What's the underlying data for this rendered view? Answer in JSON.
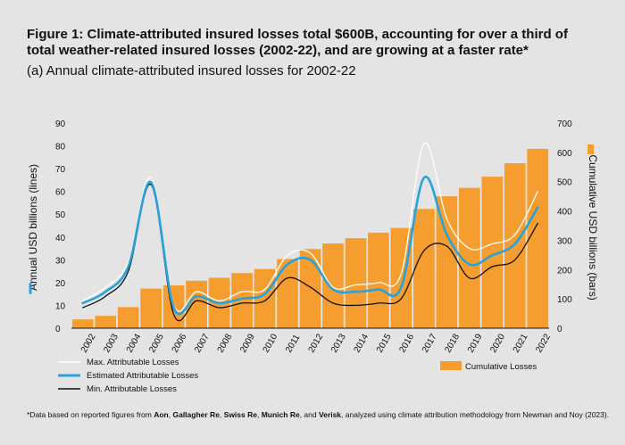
{
  "header": {
    "title": "Figure 1: Climate-attributed insured losses total $600B, accounting for over a third of total weather-related insured losses (2002-22), and are growing at a faster rate*",
    "subtitle": "(a) Annual climate-attributed insured losses for 2002-22"
  },
  "footnote": {
    "prefix": "*Data based on reported figures from ",
    "s1": "Aon",
    "sep1": ", ",
    "s2": "Gallagher Re",
    "sep2": ", ",
    "s3": "Swiss Re",
    "sep3": ", ",
    "s4": "Munich Re",
    "sep4": ", and ",
    "s5": "Verisk",
    "suffix": ", analyzed using climate attribution methodology from Newman and Noy (2023)."
  },
  "colors": {
    "bars": "#f59d2f",
    "estimated": "#27a3dc",
    "max": "#ffffff",
    "min": "#111111",
    "background": "#e4e4e4"
  },
  "chart_data": {
    "type": "bar+line",
    "categories": [
      "2002",
      "2003",
      "2004",
      "2005",
      "2006",
      "2007",
      "2008",
      "2009",
      "2010",
      "2011",
      "2012",
      "2013",
      "2014",
      "2015",
      "2016",
      "2017",
      "2018",
      "2019",
      "2020",
      "2021",
      "2022"
    ],
    "left_axis": {
      "label": "Annual USD billions (lines)",
      "ylim": [
        0,
        90
      ],
      "ticks": [
        0,
        10,
        20,
        30,
        40,
        50,
        60,
        70,
        80,
        90
      ]
    },
    "right_axis": {
      "label": "Cumulative USD billions (bars)",
      "ylim": [
        0,
        700
      ],
      "ticks": [
        0,
        100,
        200,
        300,
        400,
        500,
        600,
        700
      ]
    },
    "bars": {
      "name": "Cumulative Losses",
      "values": [
        30,
        42,
        72,
        135,
        146,
        162,
        172,
        188,
        202,
        236,
        270,
        289,
        307,
        326,
        342,
        407,
        450,
        479,
        517,
        563,
        612
      ]
    },
    "series": [
      {
        "name": "Max. Attributable Losses",
        "values": [
          12,
          18,
          29,
          66,
          10,
          16,
          12,
          16,
          17,
          32,
          33,
          18,
          19,
          20,
          24,
          81,
          48,
          35,
          37,
          41,
          60
        ]
      },
      {
        "name": "Estimated Attributable Losses",
        "values": [
          11,
          16,
          27,
          64,
          9,
          14,
          11,
          13,
          15,
          28,
          30,
          17,
          16,
          17,
          18,
          66,
          41,
          28,
          32,
          37,
          53
        ]
      },
      {
        "name": "Min. Attributable Losses",
        "values": [
          9,
          14,
          25,
          63,
          6,
          12,
          9,
          11,
          12,
          22,
          18,
          11,
          10,
          11,
          13,
          34,
          36,
          22,
          27,
          30,
          46
        ]
      }
    ],
    "legend": {
      "max": "Max. Attributable Losses",
      "estimated": "Estimated Attributable Losses",
      "min": "Min. Attributable Losses",
      "bars": "Cumulative Losses"
    }
  }
}
